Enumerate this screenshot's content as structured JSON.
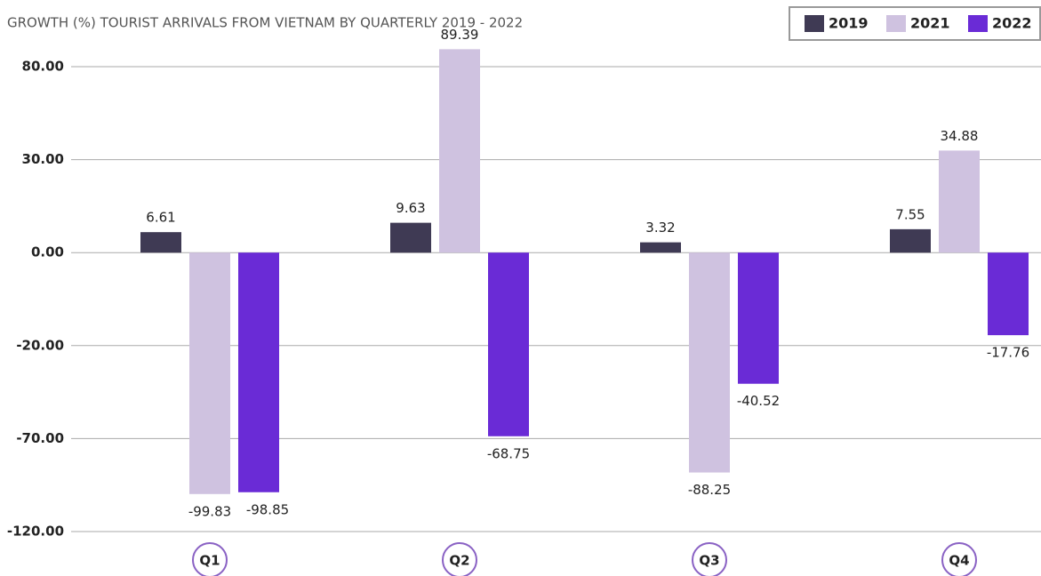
{
  "chart_data": {
    "type": "bar",
    "title": "GROWTH (%) TOURIST ARRIVALS FROM VIETNAM BY QUARTERLY  2019 - 2022",
    "categories": [
      "Q1",
      "Q2",
      "Q3",
      "Q4"
    ],
    "series": [
      {
        "name": "2019",
        "color": "#3f3a54",
        "values": [
          6.61,
          9.63,
          3.32,
          7.55
        ]
      },
      {
        "name": "2021",
        "color": "#cfc2e0",
        "values": [
          -99.83,
          89.39,
          -88.25,
          34.88
        ]
      },
      {
        "name": "2022",
        "color": "#6a2bd6",
        "values": [
          -98.85,
          -68.75,
          -40.52,
          -17.76
        ]
      }
    ],
    "ylim": [
      -120,
      90
    ],
    "yticks": [
      {
        "value": 80,
        "label": "80.00"
      },
      {
        "value": 30,
        "label": "30.00"
      },
      {
        "value": 0,
        "label": "0.00"
      },
      {
        "value": -20,
        "label": "-20.00"
      },
      {
        "value": -70,
        "label": "-70.00"
      },
      {
        "value": -120,
        "label": "-120.00"
      }
    ],
    "grid": true,
    "legend": "top-right"
  }
}
